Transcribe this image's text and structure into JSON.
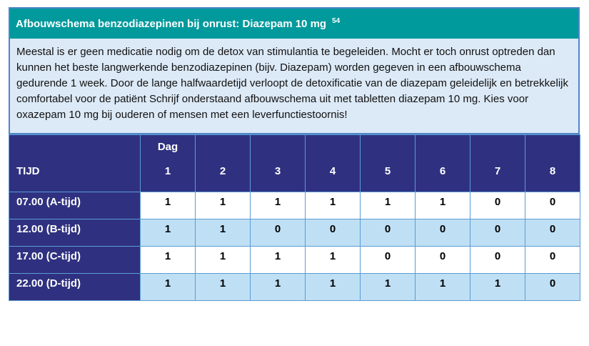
{
  "header": {
    "title": "Afbouwschema benzodiazepinen bij onrust: Diazepam 10 mg",
    "reference": "54"
  },
  "intro": {
    "text": "Meestal is er geen medicatie nodig om de detox van stimulantia te begeleiden. Mocht er toch onrust optreden dan kunnen het beste langwerkende benzodiazepinen (bijv. Diazepam) worden gegeven in een afbouwschema gedurende 1 week. Door de lange halfwaardetijd verloopt de detoxificatie van de diazepam geleidelijk en betrekkelijk comfortabel voor de patiënt Schrijf onderstaand afbouwschema uit met tabletten diazepam 10 mg. Kies voor oxazepam 10 mg bij ouderen of mensen met een leverfunctiestoornis!"
  },
  "table": {
    "time_header": "TIJD",
    "day_label": "Dag",
    "day_numbers": [
      "1",
      "2",
      "3",
      "4",
      "5",
      "6",
      "7",
      "8"
    ],
    "rows": [
      {
        "time": "07.00 (A-tijd)",
        "values": [
          "1",
          "1",
          "1",
          "1",
          "1",
          "1",
          "0",
          "0"
        ]
      },
      {
        "time": "12.00 (B-tijd)",
        "values": [
          "1",
          "1",
          "0",
          "0",
          "0",
          "0",
          "0",
          "0"
        ]
      },
      {
        "time": "17.00 (C-tijd)",
        "values": [
          "1",
          "1",
          "1",
          "1",
          "0",
          "0",
          "0",
          "0"
        ]
      },
      {
        "time": "22.00 (D-tijd)",
        "values": [
          "1",
          "1",
          "1",
          "1",
          "1",
          "1",
          "1",
          "0"
        ]
      }
    ]
  },
  "colors": {
    "title_bar": "#00999c",
    "header_navy": "#2f3180",
    "intro_background": "#dce9f6",
    "alt_row_blue": "#bfe0f4",
    "cell_border": "#5b9bd5",
    "panel_border": "#4e86c8",
    "title_text": "#ffffff"
  }
}
